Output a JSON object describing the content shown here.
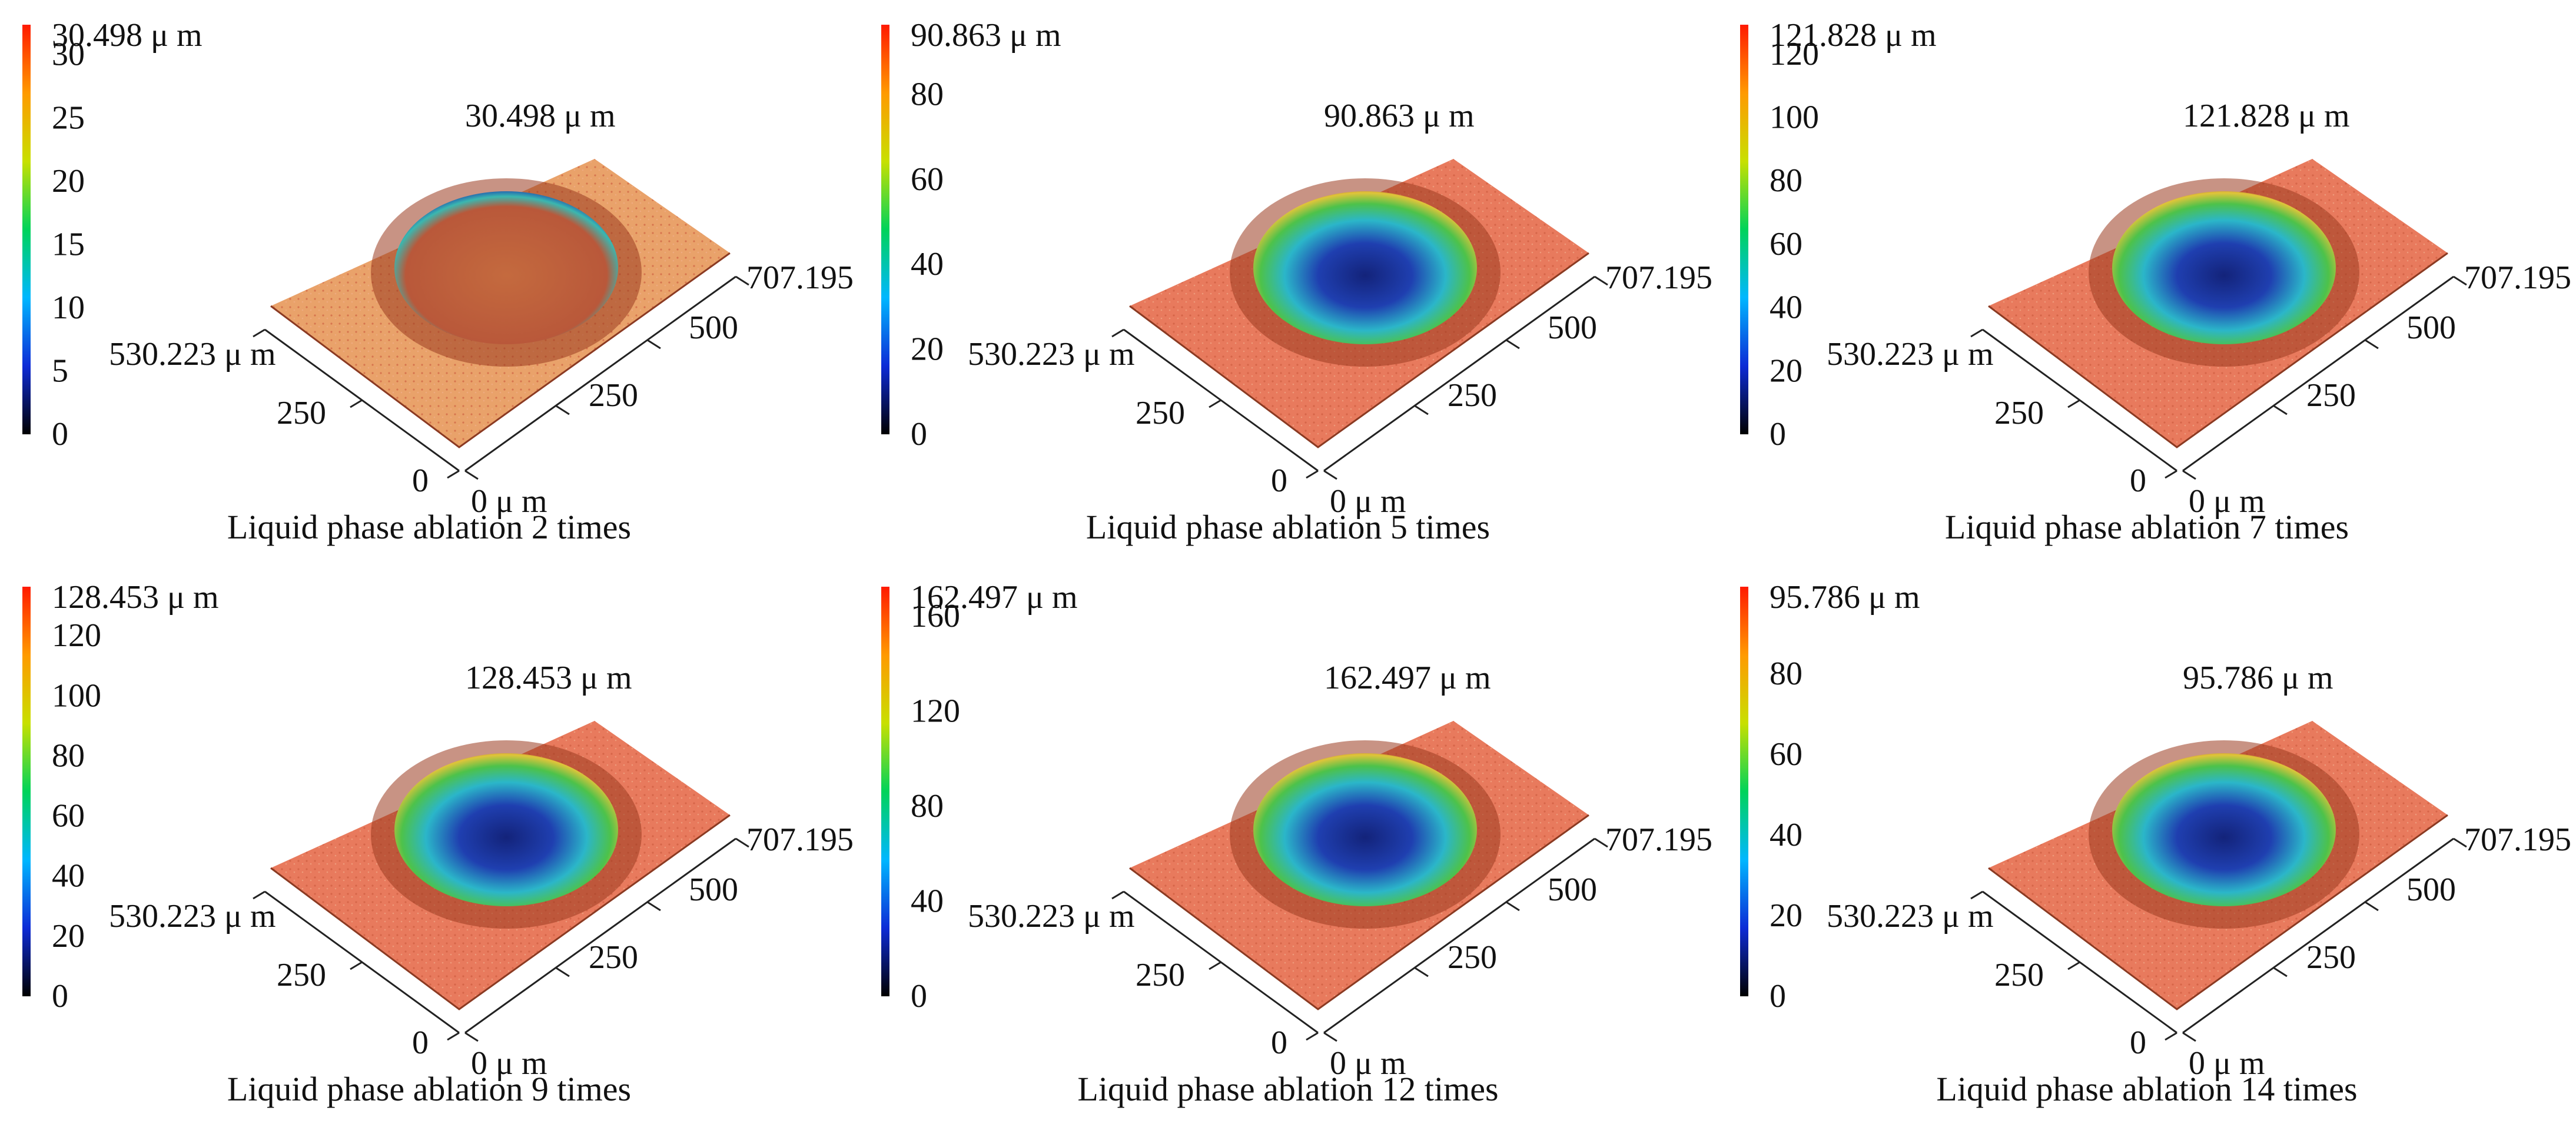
{
  "colors": {
    "surface": "#e87a5d",
    "surface_orange": "#e9a26a",
    "rim": "#9b3b1f",
    "crater_deep": "#1f3fb0",
    "crater_mid": "#2bb6c9",
    "crater_high": "#4dc24a",
    "axis": "#222222"
  },
  "colorbar_stops": [
    "#000000",
    "#0d2bd6",
    "#00b7ff",
    "#00d35a",
    "#c8e000",
    "#ff9a00",
    "#ff1a00"
  ],
  "panels": [
    {
      "caption": "Liquid phase ablation 2 times",
      "height_label": "30.498 μ m",
      "colorbar_max_label": "30.498 μ m",
      "colorbar_ticks": [
        "30",
        "25",
        "20",
        "15",
        "10",
        "5",
        "0"
      ],
      "colorbar_tick_values": [
        30,
        25,
        20,
        15,
        10,
        5,
        0
      ],
      "colorbar_max": 30.498,
      "x_extent_label": "707.195",
      "x_ticks": [
        "500",
        "250",
        "0 μ m"
      ],
      "y_extent_label": "530.223 μ m",
      "y_ticks": [
        "250",
        "0"
      ],
      "crater_fill": "shallow"
    },
    {
      "caption": "Liquid phase ablation 5 times",
      "height_label": "90.863 μ m",
      "colorbar_max_label": "90.863 μ m",
      "colorbar_ticks": [
        "80",
        "60",
        "40",
        "20",
        "0"
      ],
      "colorbar_tick_values": [
        80,
        60,
        40,
        20,
        0
      ],
      "colorbar_max": 90.863,
      "x_extent_label": "707.195",
      "x_ticks": [
        "500",
        "250",
        "0 μ m"
      ],
      "y_extent_label": "530.223 μ m",
      "y_ticks": [
        "250",
        "0"
      ],
      "crater_fill": "deep"
    },
    {
      "caption": "Liquid phase ablation 7 times",
      "height_label": "121.828 μ m",
      "colorbar_max_label": "121.828 μ m",
      "colorbar_ticks": [
        "120",
        "100",
        "80",
        "60",
        "40",
        "20",
        "0"
      ],
      "colorbar_tick_values": [
        120,
        100,
        80,
        60,
        40,
        20,
        0
      ],
      "colorbar_max": 121.828,
      "x_extent_label": "707.195",
      "x_ticks": [
        "500",
        "250",
        "0 μ m"
      ],
      "y_extent_label": "530.223 μ m",
      "y_ticks": [
        "250",
        "0"
      ],
      "crater_fill": "deep"
    },
    {
      "caption": "Liquid phase ablation 9 times",
      "height_label": "128.453 μ m",
      "colorbar_max_label": "128.453 μ m",
      "colorbar_ticks": [
        "120",
        "100",
        "80",
        "60",
        "40",
        "20",
        "0"
      ],
      "colorbar_tick_values": [
        120,
        100,
        80,
        60,
        40,
        20,
        0
      ],
      "colorbar_max": 128.453,
      "x_extent_label": "707.195",
      "x_ticks": [
        "500",
        "250",
        "0 μ m"
      ],
      "y_extent_label": "530.223 μ m",
      "y_ticks": [
        "250",
        "0"
      ],
      "crater_fill": "deep"
    },
    {
      "caption": "Liquid phase ablation 12 times",
      "height_label": "162.497 μ m",
      "colorbar_max_label": "162.497 μ m",
      "colorbar_ticks": [
        "160",
        "120",
        "80",
        "40",
        "0"
      ],
      "colorbar_tick_values": [
        160,
        120,
        80,
        40,
        0
      ],
      "colorbar_max": 162.497,
      "x_extent_label": "707.195",
      "x_ticks": [
        "500",
        "250",
        "0 μ m"
      ],
      "y_extent_label": "530.223 μ m",
      "y_ticks": [
        "250",
        "0"
      ],
      "crater_fill": "deep"
    },
    {
      "caption": "Liquid phase ablation 14 times",
      "height_label": "95.786 μ m",
      "colorbar_max_label": "95.786 μ m",
      "colorbar_ticks": [
        "80",
        "60",
        "40",
        "20",
        "0"
      ],
      "colorbar_tick_values": [
        80,
        60,
        40,
        20,
        0
      ],
      "colorbar_max": 95.786,
      "x_extent_label": "707.195",
      "x_ticks": [
        "500",
        "250",
        "0 μ m"
      ],
      "y_extent_label": "530.223 μ m",
      "y_ticks": [
        "250",
        "0"
      ],
      "crater_fill": "deep"
    }
  ]
}
